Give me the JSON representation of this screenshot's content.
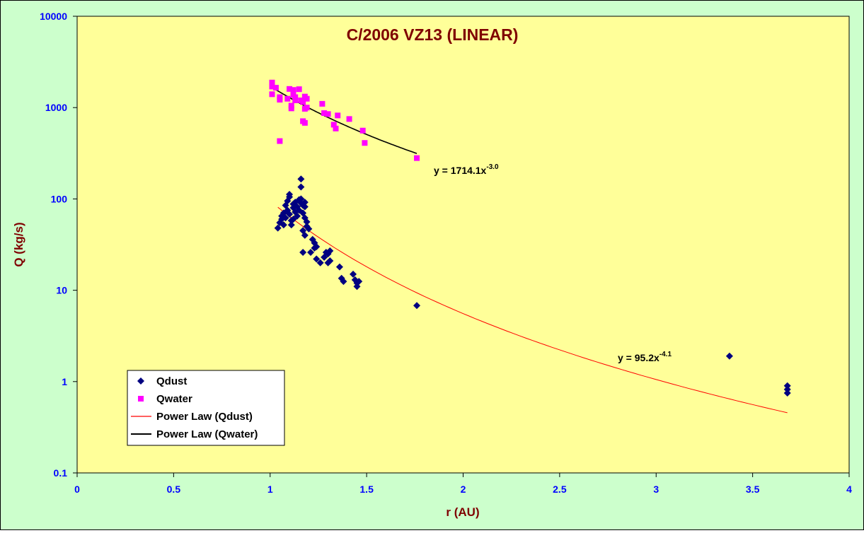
{
  "chart_data": {
    "type": "scatter",
    "title": "C/2006 VZ13 (LINEAR)",
    "xlabel": "r (AU)",
    "ylabel": "Q (kg/s)",
    "xlim": [
      0,
      4
    ],
    "ylim": [
      0.1,
      10000
    ],
    "yscale": "log",
    "x_ticks": [
      "0",
      "0.5",
      "1",
      "1.5",
      "2",
      "2.5",
      "3",
      "3.5",
      "4"
    ],
    "y_ticks": [
      "0.1",
      "1",
      "10",
      "100",
      "1000",
      "10000"
    ],
    "grid": false,
    "legend_position": "bottom-left",
    "colors": {
      "plot_background": "#ffff99",
      "chart_background": "#ccffcc",
      "qdust": "#000080",
      "qwater": "#ff00ff",
      "power_dust": "#ff0000",
      "power_water": "#000000"
    },
    "series": [
      {
        "name": "Qdust",
        "marker": "diamond",
        "points": [
          [
            1.04,
            48
          ],
          [
            1.05,
            55
          ],
          [
            1.06,
            60
          ],
          [
            1.06,
            65
          ],
          [
            1.07,
            52
          ],
          [
            1.07,
            70
          ],
          [
            1.08,
            85
          ],
          [
            1.08,
            62
          ],
          [
            1.09,
            75
          ],
          [
            1.09,
            95
          ],
          [
            1.1,
            105
          ],
          [
            1.1,
            112
          ],
          [
            1.1,
            68
          ],
          [
            1.11,
            58
          ],
          [
            1.11,
            52
          ],
          [
            1.12,
            80
          ],
          [
            1.12,
            88
          ],
          [
            1.12,
            60
          ],
          [
            1.13,
            72
          ],
          [
            1.13,
            92
          ],
          [
            1.14,
            82
          ],
          [
            1.14,
            65
          ],
          [
            1.15,
            98
          ],
          [
            1.15,
            75
          ],
          [
            1.16,
            165
          ],
          [
            1.16,
            135
          ],
          [
            1.16,
            90
          ],
          [
            1.16,
            100
          ],
          [
            1.17,
            85
          ],
          [
            1.17,
            70
          ],
          [
            1.17,
            45
          ],
          [
            1.17,
            26
          ],
          [
            1.18,
            92
          ],
          [
            1.18,
            82
          ],
          [
            1.18,
            62
          ],
          [
            1.18,
            40
          ],
          [
            1.19,
            56
          ],
          [
            1.19,
            50
          ],
          [
            1.2,
            47
          ],
          [
            1.21,
            26
          ],
          [
            1.22,
            36
          ],
          [
            1.23,
            33
          ],
          [
            1.23,
            29
          ],
          [
            1.24,
            30
          ],
          [
            1.24,
            22
          ],
          [
            1.26,
            20
          ],
          [
            1.28,
            23
          ],
          [
            1.29,
            26
          ],
          [
            1.3,
            25
          ],
          [
            1.3,
            20
          ],
          [
            1.31,
            21
          ],
          [
            1.31,
            27
          ],
          [
            1.36,
            18
          ],
          [
            1.37,
            13.5
          ],
          [
            1.38,
            12.5
          ],
          [
            1.43,
            15
          ],
          [
            1.44,
            13
          ],
          [
            1.45,
            11
          ],
          [
            1.45,
            12
          ],
          [
            1.46,
            12.5
          ],
          [
            1.76,
            6.8
          ],
          [
            3.38,
            1.9
          ],
          [
            3.68,
            0.9
          ],
          [
            3.68,
            0.82
          ],
          [
            3.68,
            0.75
          ]
        ]
      },
      {
        "name": "Qwater",
        "marker": "square",
        "points": [
          [
            1.01,
            1880
          ],
          [
            1.01,
            1700
          ],
          [
            1.01,
            1400
          ],
          [
            1.03,
            1650
          ],
          [
            1.05,
            1300
          ],
          [
            1.05,
            1220
          ],
          [
            1.05,
            430
          ],
          [
            1.09,
            1250
          ],
          [
            1.1,
            1600
          ],
          [
            1.11,
            1050
          ],
          [
            1.11,
            980
          ],
          [
            1.12,
            1380
          ],
          [
            1.12,
            1560
          ],
          [
            1.13,
            1300
          ],
          [
            1.13,
            1200
          ],
          [
            1.15,
            1590
          ],
          [
            1.16,
            1200
          ],
          [
            1.17,
            1150
          ],
          [
            1.17,
            710
          ],
          [
            1.18,
            680
          ],
          [
            1.18,
            970
          ],
          [
            1.18,
            1320
          ],
          [
            1.19,
            1250
          ],
          [
            1.19,
            1000
          ],
          [
            1.27,
            1100
          ],
          [
            1.28,
            870
          ],
          [
            1.3,
            850
          ],
          [
            1.33,
            650
          ],
          [
            1.34,
            590
          ],
          [
            1.35,
            820
          ],
          [
            1.41,
            750
          ],
          [
            1.48,
            560
          ],
          [
            1.49,
            410
          ],
          [
            1.76,
            280
          ]
        ]
      }
    ],
    "trendlines": [
      {
        "name": "Power Law (Qdust)",
        "coefficient": 95.2,
        "exponent": -4.1,
        "x_range": [
          1.04,
          3.68
        ],
        "equation_base": "y = 95.2x",
        "equation_exponent": "-4.1"
      },
      {
        "name": "Power Law (Qwater)",
        "coefficient": 1714.1,
        "exponent": -3.0,
        "x_range": [
          1.01,
          1.76
        ],
        "equation_base": "y = 1714.1x",
        "equation_exponent": "-3.0"
      }
    ],
    "legend": [
      {
        "label": "Qdust",
        "kind": "diamond",
        "color": "#000080"
      },
      {
        "label": "Qwater",
        "kind": "square",
        "color": "#ff00ff"
      },
      {
        "label": "Power Law (Qdust)",
        "kind": "line",
        "color": "#ff0000"
      },
      {
        "label": "Power Law (Qwater)",
        "kind": "line",
        "color": "#000000"
      }
    ]
  }
}
